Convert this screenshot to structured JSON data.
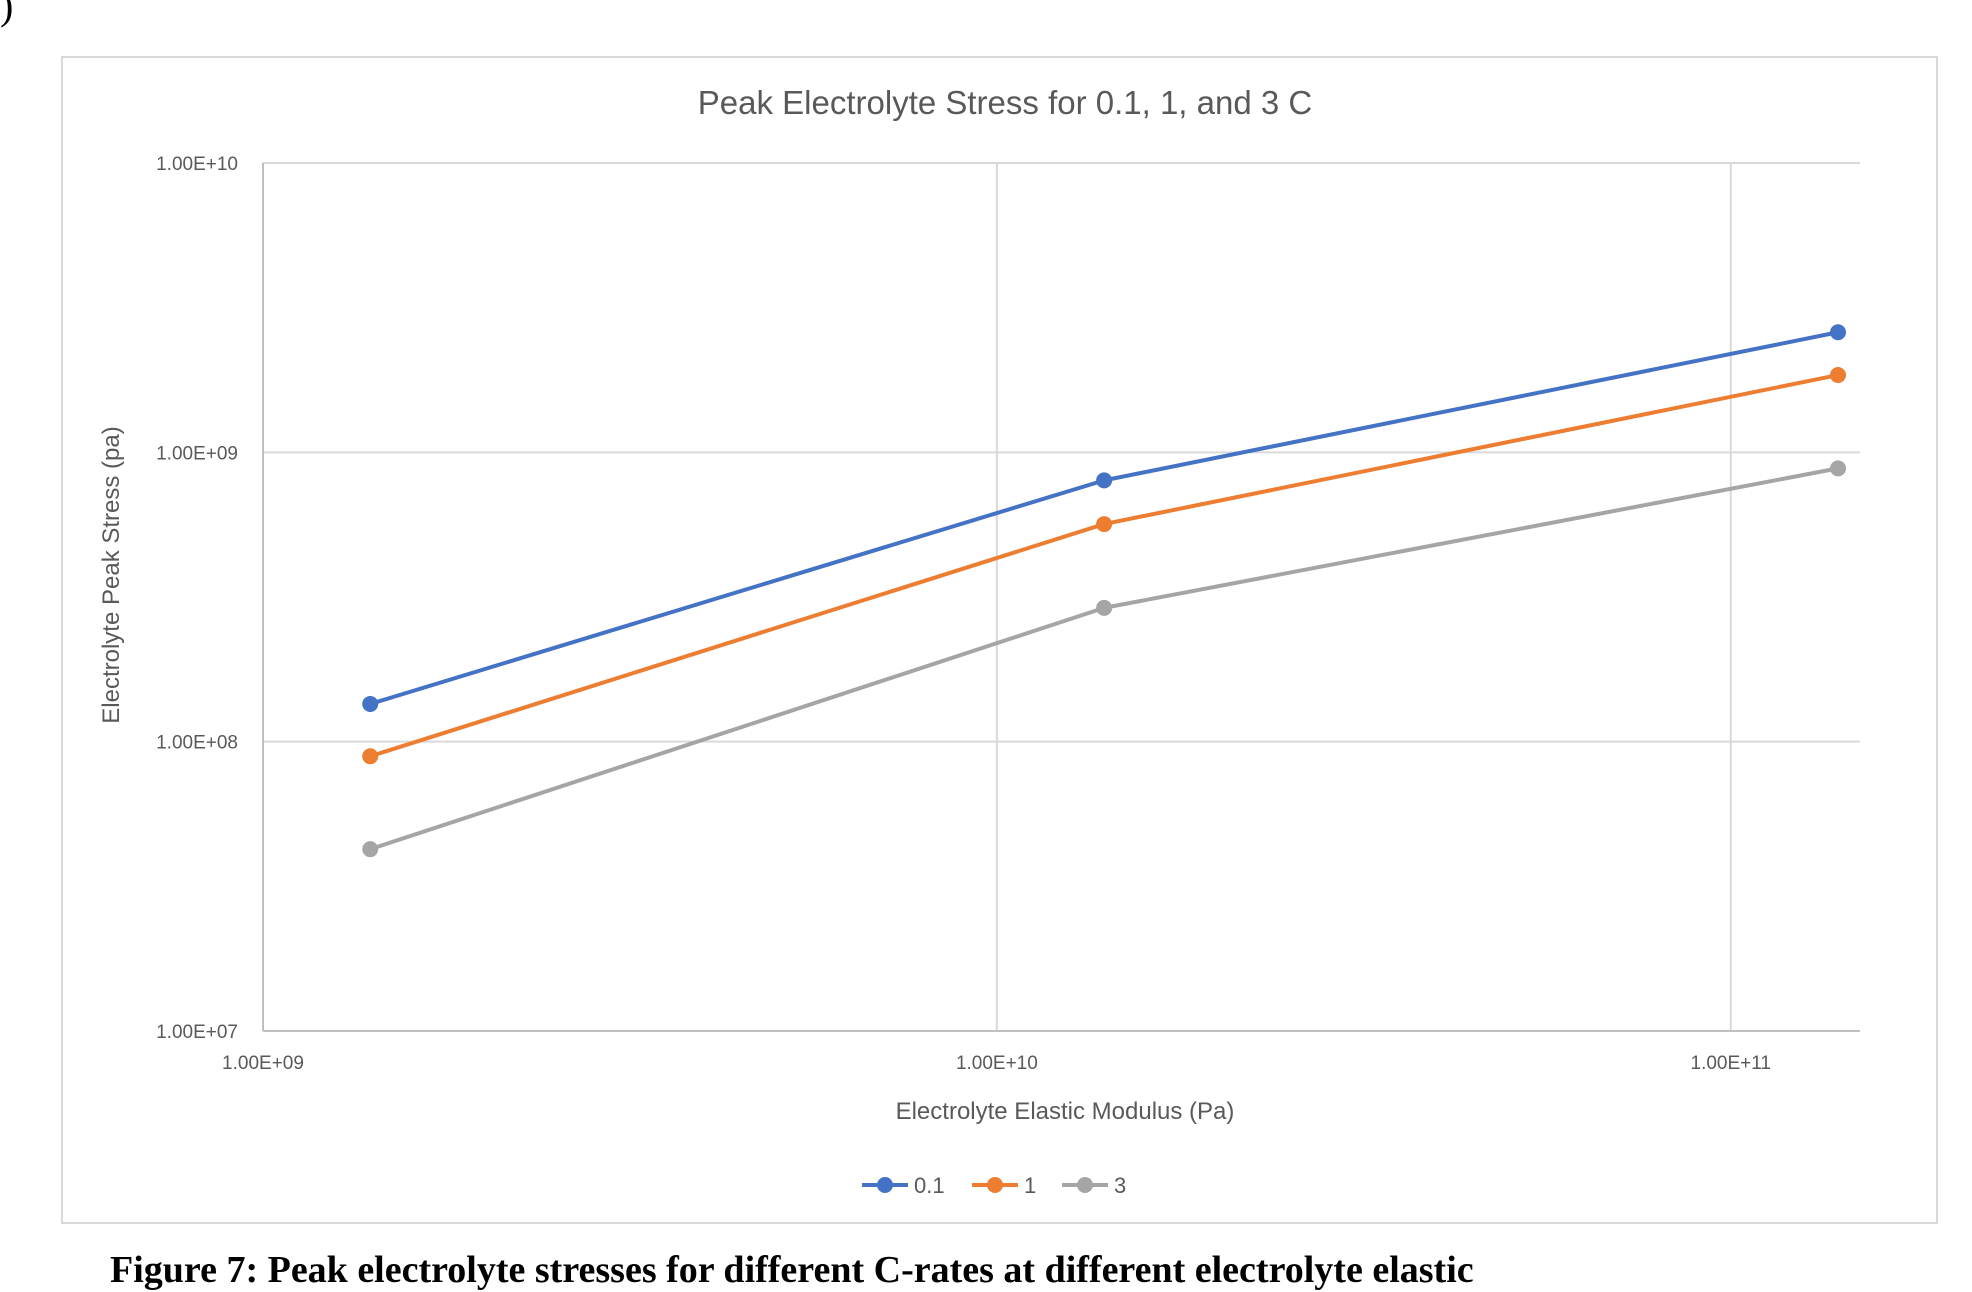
{
  "page_corner_text": ")",
  "caption": "Figure 7: Peak electrolyte stresses for different C-rates at different electrolyte elastic",
  "chart_data": {
    "type": "line",
    "title": "Peak Electrolyte Stress for 0.1, 1, and 3 C",
    "xlabel": "Electrolyte Elastic Modulus (Pa)",
    "ylabel": "Electrolyte Peak Stress (pa)",
    "x_scale": "log",
    "y_scale": "log",
    "xlim": [
      1000000000,
      150000000000
    ],
    "ylim": [
      10000000,
      10000000000
    ],
    "x_ticks": [
      1000000000,
      10000000000,
      100000000000
    ],
    "x_tick_labels": [
      "1.00E+09",
      "1.00E+10",
      "1.00E+11"
    ],
    "y_ticks": [
      10000000,
      100000000,
      1000000000,
      10000000000
    ],
    "y_tick_labels": [
      "1.00E+07",
      "1.00E+08",
      "1.00E+09",
      "1.00E+10"
    ],
    "grid": true,
    "legend_position": "bottom",
    "x": [
      1400000000,
      14000000000,
      140000000000
    ],
    "series": [
      {
        "name": "0.1",
        "color": "#4472c4",
        "values": [
          135000000,
          800000000,
          2600000000
        ]
      },
      {
        "name": "1",
        "color": "#ed7d31",
        "values": [
          89000000,
          565000000,
          1850000000
        ]
      },
      {
        "name": "3",
        "color": "#a5a5a5",
        "values": [
          42500000,
          290000000,
          880000000
        ]
      }
    ]
  }
}
